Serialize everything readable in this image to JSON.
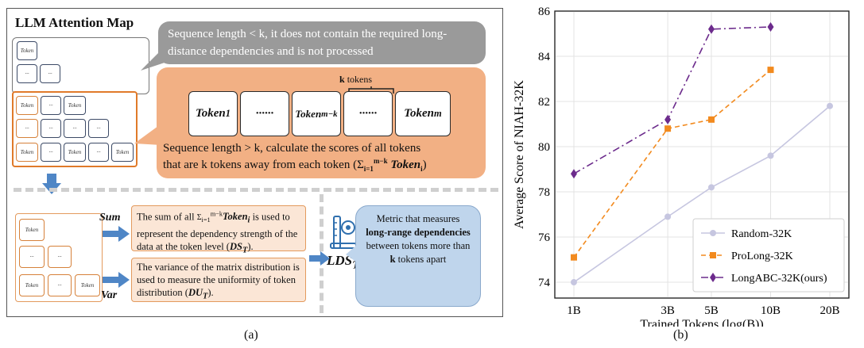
{
  "panel_a": {
    "title": "LLM Attention Map",
    "bubble_gray": "Sequence length < k, it does not contain the required long-distance dependencies and is not processed",
    "k_tokens_label_k": "k",
    "k_tokens_label_rest": " tokens",
    "big_tokens": [
      "Token",
      "······",
      "Token",
      "······",
      "Token"
    ],
    "big_token_subs": [
      "1",
      "",
      "m−k",
      "",
      "m"
    ],
    "bubble_orange_line1": "Sequence length > k, calculate the scores of all tokens",
    "bubble_orange_line2": "that are k tokens away from each token (Σ",
    "bubble_orange_sum_tail": "Token",
    "small_matrix_tokens": [
      "Token",
      "···",
      "···"
    ],
    "mid_matrix_tokens": [
      "Token",
      "···",
      "Token",
      "···",
      "···",
      "···",
      "···",
      "···",
      "···",
      "···",
      "Token",
      "···",
      "Token",
      "···",
      "Token"
    ],
    "low_matrix_tokens": [
      "Token",
      "···",
      "···",
      "Token",
      "···",
      "Token"
    ],
    "sum_label": "Sum",
    "var_label": "Var",
    "sum_text": "The sum of all Σ Token is used to represent the dependency strength of the data at the token level (DS",
    "var_text": "The variance of the matrix distribution is used to measure the uniformity of token distribution (DU",
    "lds_label": "LDS",
    "lds_sub": "T",
    "blue_text_1": "Metric that measures",
    "blue_text_bold": "long-range dependencies",
    "blue_text_2": "between tokens more than",
    "blue_text_k": "k",
    "blue_text_3": "tokens apart",
    "caption": "(a)"
  },
  "panel_b": {
    "caption": "(b)"
  },
  "chart_data": {
    "type": "line",
    "xlabel": "Trained Tokens (log(B))",
    "ylabel": "Average  Score  of  NIAH-32K",
    "x_scale": "log",
    "x": [
      1,
      3,
      5,
      10,
      20
    ],
    "x_tick_labels": [
      "1B",
      "3B",
      "5B",
      "10B",
      "20B"
    ],
    "ylim": [
      73.3,
      86
    ],
    "y_ticks": [
      74,
      76,
      78,
      80,
      82,
      84,
      86
    ],
    "grid": true,
    "legend_position": "bottom-right",
    "series": [
      {
        "name": "Random-32K",
        "x": [
          1,
          3,
          5,
          10,
          20
        ],
        "values": [
          74.0,
          76.9,
          78.2,
          79.6,
          81.8
        ],
        "color": "#c6c6e0",
        "marker": "circle",
        "line": "solid"
      },
      {
        "name": "ProLong-32K",
        "x": [
          1,
          3,
          5,
          10
        ],
        "values": [
          75.1,
          80.8,
          81.2,
          83.4
        ],
        "color": "#f28a1e",
        "marker": "square",
        "line": "dashed"
      },
      {
        "name": "LongABC-32K(ours)",
        "x": [
          1,
          3,
          5,
          10
        ],
        "values": [
          78.8,
          81.2,
          85.2,
          85.3
        ],
        "color": "#6c2b8c",
        "marker": "diamond",
        "line": "dashdot"
      }
    ]
  },
  "colors": {
    "orange_bubble": "#f2b084",
    "gray_bubble": "#9a9a9a",
    "blue_box": "#bfd5ec",
    "arrow_blue": "#4f86c6"
  }
}
